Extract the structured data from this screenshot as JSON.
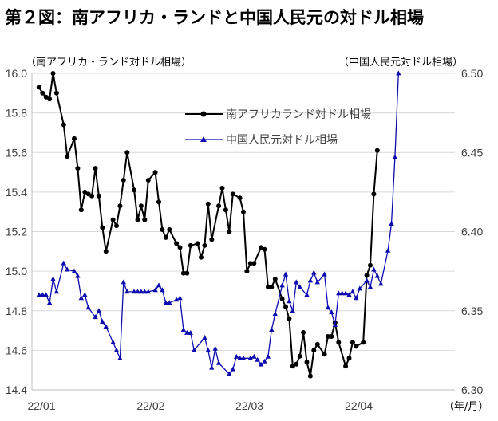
{
  "title": "第２図：南アフリカ・ランドと中国人民元の対ドル相場",
  "colors": {
    "zar": "#000000",
    "cny": "#0b0bb0",
    "grid": "#d9d9d9",
    "axis": "#bfbfbf"
  },
  "chart_data": {
    "type": "line",
    "left_axis_label": "（南アフリカ・ランド対ドル相場）",
    "right_axis_label": "（中国人民元対ドル相場）",
    "x_unit_label": "（年/月）",
    "x_ticks": [
      "22/01",
      "22/02",
      "22/03",
      "22/04"
    ],
    "left_ticks": [
      "14.4",
      "14.6",
      "14.8",
      "15.0",
      "15.2",
      "15.4",
      "15.6",
      "15.8",
      "16.0"
    ],
    "right_ticks": [
      "6.30",
      "6.35",
      "6.40",
      "6.45",
      "6.50"
    ],
    "left_ylim": [
      14.4,
      16.0
    ],
    "right_ylim": [
      6.3,
      6.5
    ],
    "x_range": [
      "2022-01-01",
      "2022-05-01"
    ],
    "grid": true,
    "legend_position": "top-center",
    "series": [
      {
        "name": "南アフリカランド対ドル相場",
        "axis": "left",
        "marker": "circle",
        "points": [
          [
            "2022-01-03",
            15.93
          ],
          [
            "2022-01-04",
            15.9
          ],
          [
            "2022-01-05",
            15.88
          ],
          [
            "2022-01-06",
            15.87
          ],
          [
            "2022-01-07",
            16.0
          ],
          [
            "2022-01-08",
            15.9
          ],
          [
            "2022-01-10",
            15.74
          ],
          [
            "2022-01-11",
            15.58
          ],
          [
            "2022-01-13",
            15.67
          ],
          [
            "2022-01-14",
            15.52
          ],
          [
            "2022-01-15",
            15.31
          ],
          [
            "2022-01-16",
            15.4
          ],
          [
            "2022-01-17",
            15.39
          ],
          [
            "2022-01-18",
            15.38
          ],
          [
            "2022-01-19",
            15.52
          ],
          [
            "2022-01-20",
            15.38
          ],
          [
            "2022-01-21",
            15.22
          ],
          [
            "2022-01-22",
            15.1
          ],
          [
            "2022-01-24",
            15.26
          ],
          [
            "2022-01-25",
            15.23
          ],
          [
            "2022-01-26",
            15.33
          ],
          [
            "2022-01-27",
            15.46
          ],
          [
            "2022-01-28",
            15.6
          ],
          [
            "2022-01-30",
            15.41
          ],
          [
            "2022-01-31",
            15.26
          ],
          [
            "2022-02-01",
            15.33
          ],
          [
            "2022-02-02",
            15.26
          ],
          [
            "2022-02-03",
            15.46
          ],
          [
            "2022-02-05",
            15.5
          ],
          [
            "2022-02-06",
            15.35
          ],
          [
            "2022-02-07",
            15.21
          ],
          [
            "2022-02-08",
            15.17
          ],
          [
            "2022-02-09",
            15.21
          ],
          [
            "2022-02-11",
            15.14
          ],
          [
            "2022-02-12",
            15.12
          ],
          [
            "2022-02-13",
            14.99
          ],
          [
            "2022-02-14",
            14.99
          ],
          [
            "2022-02-15",
            15.13
          ],
          [
            "2022-02-17",
            15.14
          ],
          [
            "2022-02-18",
            15.07
          ],
          [
            "2022-02-19",
            15.13
          ],
          [
            "2022-02-20",
            15.34
          ],
          [
            "2022-02-21",
            15.16
          ],
          [
            "2022-02-23",
            15.33
          ],
          [
            "2022-02-24",
            15.42
          ],
          [
            "2022-02-25",
            15.31
          ],
          [
            "2022-02-26",
            15.2
          ],
          [
            "2022-02-27",
            15.39
          ],
          [
            "2022-03-01",
            15.37
          ],
          [
            "2022-03-02",
            15.3
          ],
          [
            "2022-03-03",
            15.0
          ],
          [
            "2022-03-04",
            15.04
          ],
          [
            "2022-03-05",
            15.04
          ],
          [
            "2022-03-07",
            15.12
          ],
          [
            "2022-03-08",
            15.11
          ],
          [
            "2022-03-09",
            14.92
          ],
          [
            "2022-03-10",
            14.92
          ],
          [
            "2022-03-11",
            14.96
          ],
          [
            "2022-03-13",
            14.86
          ],
          [
            "2022-03-14",
            14.82
          ],
          [
            "2022-03-15",
            14.76
          ],
          [
            "2022-03-16",
            14.52
          ],
          [
            "2022-03-17",
            14.53
          ],
          [
            "2022-03-18",
            14.57
          ],
          [
            "2022-03-19",
            14.69
          ],
          [
            "2022-03-20",
            14.54
          ],
          [
            "2022-03-21",
            14.47
          ],
          [
            "2022-03-22",
            14.6
          ],
          [
            "2022-03-23",
            14.63
          ],
          [
            "2022-03-25",
            14.58
          ],
          [
            "2022-03-26",
            14.67
          ],
          [
            "2022-03-27",
            14.67
          ],
          [
            "2022-03-28",
            14.74
          ],
          [
            "2022-03-29",
            14.64
          ],
          [
            "2022-03-31",
            14.52
          ],
          [
            "2022-04-01",
            14.56
          ],
          [
            "2022-04-02",
            14.64
          ],
          [
            "2022-04-03",
            14.62
          ],
          [
            "2022-04-05",
            14.64
          ],
          [
            "2022-04-06",
            14.98
          ],
          [
            "2022-04-07",
            15.03
          ],
          [
            "2022-04-08",
            15.39
          ],
          [
            "2022-04-09",
            15.61
          ]
        ]
      },
      {
        "name": "中国人民元対ドル相場",
        "axis": "right",
        "marker": "triangle",
        "points": [
          [
            "2022-01-03",
            6.36
          ],
          [
            "2022-01-04",
            6.36
          ],
          [
            "2022-01-05",
            6.36
          ],
          [
            "2022-01-06",
            6.355
          ],
          [
            "2022-01-07",
            6.37
          ],
          [
            "2022-01-08",
            6.362
          ],
          [
            "2022-01-10",
            6.38
          ],
          [
            "2022-01-11",
            6.376
          ],
          [
            "2022-01-13",
            6.375
          ],
          [
            "2022-01-14",
            6.372
          ],
          [
            "2022-01-15",
            6.358
          ],
          [
            "2022-01-16",
            6.36
          ],
          [
            "2022-01-17",
            6.352
          ],
          [
            "2022-01-19",
            6.346
          ],
          [
            "2022-01-20",
            6.35
          ],
          [
            "2022-01-21",
            6.343
          ],
          [
            "2022-01-22",
            6.34
          ],
          [
            "2022-01-24",
            6.33
          ],
          [
            "2022-01-25",
            6.325
          ],
          [
            "2022-01-26",
            6.32
          ],
          [
            "2022-01-27",
            6.368
          ],
          [
            "2022-01-28",
            6.362
          ],
          [
            "2022-01-30",
            6.362
          ],
          [
            "2022-01-31",
            6.362
          ],
          [
            "2022-02-01",
            6.362
          ],
          [
            "2022-02-02",
            6.362
          ],
          [
            "2022-02-03",
            6.362
          ],
          [
            "2022-02-05",
            6.363
          ],
          [
            "2022-02-06",
            6.366
          ],
          [
            "2022-02-07",
            6.363
          ],
          [
            "2022-02-08",
            6.355
          ],
          [
            "2022-02-09",
            6.355
          ],
          [
            "2022-02-11",
            6.357
          ],
          [
            "2022-02-12",
            6.358
          ],
          [
            "2022-02-13",
            6.338
          ],
          [
            "2022-02-14",
            6.336
          ],
          [
            "2022-02-15",
            6.336
          ],
          [
            "2022-02-16",
            6.325
          ],
          [
            "2022-02-19",
            6.333
          ],
          [
            "2022-02-20",
            6.325
          ],
          [
            "2022-02-21",
            6.314
          ],
          [
            "2022-02-22",
            6.326
          ],
          [
            "2022-02-23",
            6.317
          ],
          [
            "2022-02-26",
            6.31
          ],
          [
            "2022-02-27",
            6.313
          ],
          [
            "2022-02-28",
            6.321
          ],
          [
            "2022-03-01",
            6.32
          ],
          [
            "2022-03-02",
            6.32
          ],
          [
            "2022-03-04",
            6.32
          ],
          [
            "2022-03-05",
            6.321
          ],
          [
            "2022-03-06",
            6.319
          ],
          [
            "2022-03-07",
            6.316
          ],
          [
            "2022-03-08",
            6.318
          ],
          [
            "2022-03-09",
            6.321
          ],
          [
            "2022-03-10",
            6.338
          ],
          [
            "2022-03-11",
            6.348
          ],
          [
            "2022-03-13",
            6.366
          ],
          [
            "2022-03-14",
            6.373
          ],
          [
            "2022-03-15",
            6.356
          ],
          [
            "2022-03-16",
            6.35
          ],
          [
            "2022-03-17",
            6.368
          ],
          [
            "2022-03-18",
            6.365
          ],
          [
            "2022-03-20",
            6.36
          ],
          [
            "2022-03-21",
            6.369
          ],
          [
            "2022-03-22",
            6.374
          ],
          [
            "2022-03-23",
            6.368
          ],
          [
            "2022-03-25",
            6.373
          ],
          [
            "2022-03-26",
            6.352
          ],
          [
            "2022-03-27",
            6.349
          ],
          [
            "2022-03-28",
            6.341
          ],
          [
            "2022-03-29",
            6.361
          ],
          [
            "2022-03-30",
            6.361
          ],
          [
            "2022-03-31",
            6.361
          ],
          [
            "2022-04-01",
            6.36
          ],
          [
            "2022-04-02",
            6.362
          ],
          [
            "2022-04-03",
            6.358
          ],
          [
            "2022-04-04",
            6.364
          ],
          [
            "2022-04-06",
            6.369
          ],
          [
            "2022-04-07",
            6.365
          ],
          [
            "2022-04-08",
            6.376
          ],
          [
            "2022-04-09",
            6.372
          ],
          [
            "2022-04-10",
            6.367
          ],
          [
            "2022-04-12",
            6.388
          ],
          [
            "2022-04-13",
            6.405
          ],
          [
            "2022-04-14",
            6.447
          ],
          [
            "2022-04-15",
            6.5
          ]
        ]
      }
    ]
  }
}
